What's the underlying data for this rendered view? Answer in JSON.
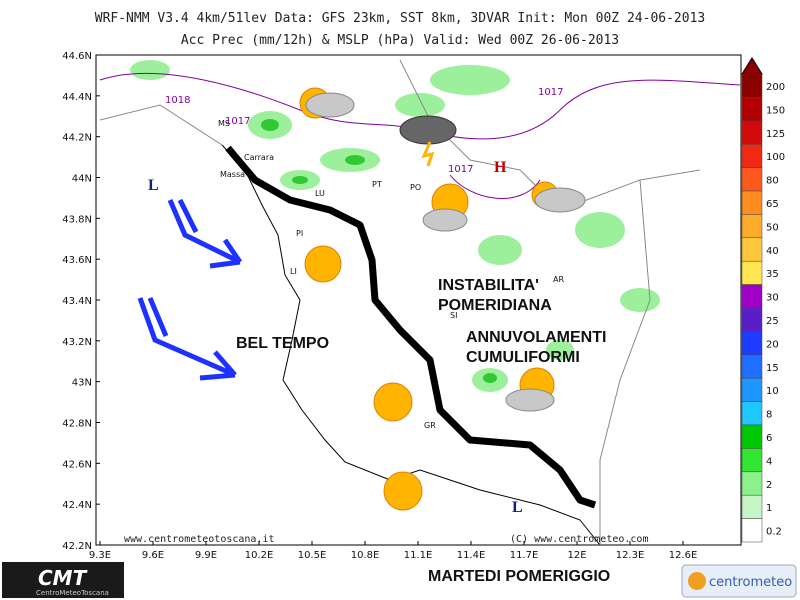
{
  "header": {
    "line1": "WRF-NMM V3.4 4km/51lev  Data: GFS 23km, SST 8km, 3DVAR  Init: Mon 00Z 24-06-2013",
    "line2": "Acc Prec (mm/12h) & MSLP (hPa)  Valid: Wed 00Z 26-06-2013"
  },
  "map": {
    "y_labels": [
      "44.6N",
      "44.4N",
      "44.2N",
      "44N",
      "43.8N",
      "43.6N",
      "43.4N",
      "43.2N",
      "43N",
      "42.8N",
      "42.6N",
      "42.4N",
      "42.2N"
    ],
    "x_labels": [
      "9.3E",
      "9.6E",
      "9.9E",
      "10.2E",
      "10.5E",
      "10.8E",
      "11.1E",
      "11.4E",
      "11.7E",
      "12E",
      "12.3E",
      "12.6E"
    ],
    "cities": [
      "MS",
      "Carrara",
      "Massa",
      "LU",
      "PT",
      "PO",
      "PI",
      "LI",
      "SI",
      "AR",
      "GR"
    ],
    "isobars": [
      "1018",
      "1017",
      "1017",
      "1017"
    ],
    "pressure_centers": [
      "L",
      "L",
      "H"
    ],
    "annotations": {
      "instability": [
        "INSTABILITA'",
        "POMERIDIANA"
      ],
      "clouds": [
        "ANNUVOLAMENTI",
        "CUMULIFORMI"
      ],
      "fair": "BEL TEMPO",
      "time": "MARTEDI POMERIGGIO"
    },
    "credits": [
      "www.centrometeotoscana.it",
      "(C) www.centrometeo.com"
    ]
  },
  "colorbar": {
    "labels": [
      "200",
      "150",
      "125",
      "100",
      "80",
      "65",
      "50",
      "40",
      "35",
      "30",
      "25",
      "20",
      "15",
      "10",
      "8",
      "6",
      "4",
      "2",
      "1",
      "0.2"
    ],
    "colors": [
      "#8c0000",
      "#b40000",
      "#d20a0a",
      "#f02814",
      "#ff5a1e",
      "#ff8c1e",
      "#ffaa28",
      "#ffc83c",
      "#ffe650",
      "#a000c8",
      "#5a1ec8",
      "#1e3cff",
      "#1e6eff",
      "#1e96ff",
      "#1ec8ff",
      "#00c800",
      "#32e632",
      "#8cf08c",
      "#c8f5c8",
      "#ffffff"
    ]
  },
  "logos": {
    "left": "CMT",
    "left_sub": "CentroMeteoToscana",
    "right": "centrometeo"
  }
}
